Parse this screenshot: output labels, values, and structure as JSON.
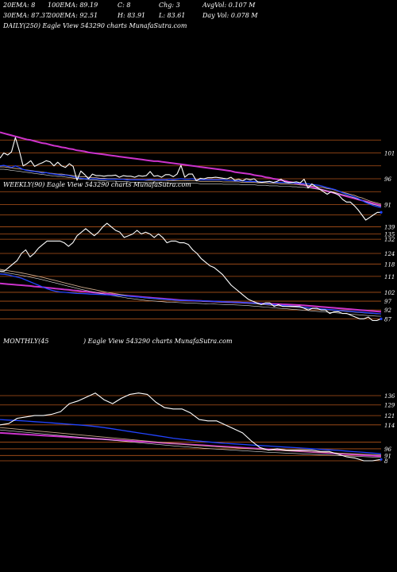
{
  "header": {
    "row1": [
      "20EMA: 8",
      "100EMA: 89.19",
      "C: 8",
      "Chg: 3",
      "AvgVol: 0.107 M"
    ],
    "row2": [
      "30EMA: 87.37",
      "200EMA: 92.51",
      "H: 83.91",
      "L: 83.61",
      "Day Vol: 0.078 M"
    ],
    "daily_label": "DAILY(250) Eagle   View  543290  charts MunafaSutra.com",
    "weekly_label": "WEEKLY(90) Eagle   View  543290  charts MunafaSutra.com",
    "monthly_label": "MONTHLY(45",
    "monthly_label2": ") Eagle   View  543290  charts MunafaSutra.com"
  },
  "colors": {
    "background": "#000000",
    "price": "#ffffff",
    "ema_short": "#2244ff",
    "ema_long": "#cc33cc",
    "ema_mid": "#caa88a",
    "level_line": "#b0531a"
  },
  "chart_data": [
    {
      "type": "line",
      "title": "DAILY(250) Eagle View 543290 charts MunafaSutra.com",
      "ylim": [
        86,
        106
      ],
      "level_ticks": [
        101,
        96,
        91
      ],
      "level_lines": [
        103.5,
        101,
        98.5,
        96,
        93.5,
        91,
        89
      ],
      "x_count": 100,
      "series": [
        {
          "role": "price",
          "values": [
            100,
            101,
            100.6,
            101.2,
            104,
            101.5,
            98.5,
            98.9,
            99.5,
            98.4,
            98.8,
            99.1,
            99.5,
            99.3,
            98.5,
            99.2,
            98.5,
            98.2,
            98.9,
            98.4,
            95.7,
            97.5,
            96.8,
            96,
            96.9,
            96.6,
            96.6,
            96.5,
            96.6,
            96.6,
            96.7,
            96.3,
            96.6,
            96.5,
            96.5,
            96.3,
            96.6,
            96.5,
            96.6,
            97.4,
            96.5,
            96.6,
            96.3,
            96.8,
            96.8,
            96.4,
            96.9,
            98.6,
            96.3,
            96.9,
            96.9,
            95.6,
            96.1,
            96,
            96.2,
            96.2,
            96.3,
            96.2,
            96.1,
            96,
            96.3,
            95.7,
            95.9,
            95.6,
            96,
            95.8,
            96,
            95.4,
            95.3,
            95.4,
            95.5,
            95.3,
            95.5,
            95.9,
            95.4,
            95.3,
            95.3,
            95.4,
            95.2,
            95.9,
            94.2,
            95,
            94.5,
            94,
            93.5,
            93,
            93.5,
            93.2,
            92.8,
            92,
            91.5,
            91.5,
            90.8,
            90,
            89,
            88,
            88.5,
            89,
            89.5,
            89.5
          ]
        },
        {
          "role": "ema_short",
          "values": [
            98.5,
            98.6,
            98.4,
            98.2,
            98.5,
            98.2,
            97.8,
            97.6,
            97.5,
            97.4,
            97.3,
            97.1,
            97.2,
            97,
            96.9,
            96.8,
            96.7,
            96.7,
            96.6,
            96.4,
            96.2,
            96.1,
            96,
            96,
            96,
            96,
            95.9,
            95.9,
            95.9,
            95.9,
            95.9,
            95.9,
            95.9,
            95.8,
            95.8,
            95.8,
            95.8,
            95.8,
            95.8,
            95.9,
            95.8,
            95.8,
            95.8,
            95.8,
            95.9,
            95.8,
            95.9,
            96,
            95.9,
            95.9,
            96,
            95.8,
            95.8,
            95.8,
            95.8,
            95.8,
            95.8,
            95.8,
            95.8,
            95.7,
            95.7,
            95.6,
            95.6,
            95.6,
            95.5,
            95.5,
            95.5,
            95.4,
            95.4,
            95.4,
            95.4,
            95.3,
            95.3,
            95.3,
            95.3,
            95.2,
            95.2,
            95.2,
            95.1,
            95.1,
            95,
            94.9,
            94.8,
            94.7,
            94.5,
            94.3,
            94.1,
            93.9,
            93.6,
            93.3,
            93,
            92.8,
            92.5,
            92.2,
            91.8,
            91.4,
            91.1,
            90.8,
            90.6,
            90.4
          ]
        },
        {
          "role": "ema_mid",
          "values": [
            98.3,
            98.3,
            98.2,
            98.1,
            98,
            97.9,
            97.8,
            97.7,
            97.6,
            97.5,
            97.4,
            97.3,
            97.2,
            97.1,
            97,
            96.9,
            96.9,
            96.8,
            96.7,
            96.6,
            96.5,
            96.4,
            96.4,
            96.3,
            96.2,
            96.2,
            96.1,
            96.1,
            96,
            96,
            96,
            95.9,
            95.9,
            95.9,
            95.8,
            95.8,
            95.8,
            95.8,
            95.7,
            95.7,
            95.7,
            95.7,
            95.7,
            95.7,
            95.6,
            95.6,
            95.6,
            95.6,
            95.6,
            95.6,
            95.6,
            95.6,
            95.5,
            95.5,
            95.5,
            95.5,
            95.5,
            95.5,
            95.4,
            95.4,
            95.4,
            95.4,
            95.4,
            95.3,
            95.3,
            95.3,
            95.3,
            95.2,
            95.2,
            95.2,
            95.1,
            95.1,
            95.1,
            95,
            95,
            95,
            94.9,
            94.9,
            94.8,
            94.8,
            94.7,
            94.6,
            94.5,
            94.4,
            94.3,
            94.1,
            94,
            93.8,
            93.6,
            93.4,
            93.2,
            93,
            92.8,
            92.5,
            92.3,
            92,
            91.7,
            91.5,
            91.3,
            91.1
          ]
        },
        {
          "role": "ema_long",
          "values": [
            105,
            104.8,
            104.6,
            104.4,
            104.2,
            104,
            103.8,
            103.6,
            103.5,
            103.3,
            103.1,
            102.9,
            102.8,
            102.6,
            102.4,
            102.3,
            102.1,
            102,
            101.8,
            101.7,
            101.5,
            101.4,
            101.3,
            101.1,
            101,
            100.9,
            100.8,
            100.7,
            100.6,
            100.5,
            100.4,
            100.3,
            100.2,
            100.1,
            100,
            99.9,
            99.8,
            99.7,
            99.6,
            99.5,
            99.4,
            99.4,
            99.3,
            99.2,
            99.1,
            99,
            98.9,
            98.8,
            98.7,
            98.6,
            98.5,
            98.4,
            98.3,
            98.2,
            98.1,
            98,
            97.9,
            97.8,
            97.7,
            97.6,
            97.5,
            97.3,
            97.2,
            97.1,
            97,
            96.9,
            96.7,
            96.6,
            96.5,
            96.3,
            96.2,
            96,
            95.9,
            95.7,
            95.6,
            95.4,
            95.3,
            95.1,
            94.9,
            94.8,
            94.6,
            94.4,
            94.2,
            94,
            93.8,
            93.6,
            93.4,
            93.2,
            93,
            92.8,
            92.6,
            92.4,
            92.2,
            92,
            91.8,
            91.6,
            91.4,
            91.2,
            91,
            90.8
          ]
        }
      ]
    },
    {
      "type": "line",
      "title": "WEEKLY(90) Eagle View 543290 charts MunafaSutra.com",
      "ylim": [
        84,
        146
      ],
      "level_ticks": [
        139,
        135,
        132,
        124,
        118,
        111,
        102,
        97,
        92,
        87
      ],
      "level_lines": [
        139,
        135,
        132,
        124,
        118,
        111,
        102,
        97,
        92,
        87
      ],
      "x_count": 90,
      "series": [
        {
          "role": "price",
          "values": [
            114,
            114,
            116,
            118,
            120,
            124,
            126,
            122,
            124,
            127,
            129,
            131,
            131,
            131,
            131,
            130,
            128,
            130,
            134,
            136,
            138,
            136,
            134,
            136,
            139,
            141,
            139,
            137,
            136,
            133,
            134,
            135,
            137,
            135,
            136,
            135,
            133,
            135,
            133,
            130,
            131,
            131,
            130,
            130,
            129,
            126,
            124,
            121,
            119,
            117,
            116,
            114,
            112,
            109,
            106,
            104,
            102,
            100,
            98,
            97,
            96,
            95,
            96,
            96,
            94,
            95,
            94,
            94,
            94,
            94,
            94,
            93,
            92,
            93,
            93,
            92,
            92,
            90,
            91,
            91,
            90,
            90,
            89,
            88,
            87,
            87,
            88,
            86,
            86,
            87
          ]
        },
        {
          "role": "ema_short",
          "values": [
            112.4,
            112.2,
            111.8,
            111.2,
            110.6,
            110,
            109,
            108,
            107,
            106,
            105,
            104,
            103.2,
            102.6,
            102.2,
            102,
            101.8,
            101.6,
            101.4,
            101.3,
            101.2,
            101,
            100.9,
            100.8,
            100.7,
            100.6,
            100.4,
            100.3,
            100.2,
            100,
            99.8,
            99.6,
            99.4,
            99.2,
            99,
            98.8,
            98.6,
            98.4,
            98.2,
            98,
            97.8,
            97.6,
            97.4,
            97.4,
            97.4,
            97.3,
            97.2,
            97.2,
            97.1,
            97,
            96.9,
            96.8,
            96.7,
            96.6,
            96.5,
            96.4,
            96.3,
            96.2,
            96.1,
            95.9,
            95.8,
            95.6,
            95.4,
            95.2,
            95,
            94.8,
            94.6,
            94.4,
            94.2,
            94,
            93.7,
            93.5,
            93.2,
            93,
            92.8,
            92.6,
            92.4,
            92.2,
            92,
            91.8,
            91.6,
            91.4,
            91.2,
            91,
            90.8,
            90.6,
            90.4,
            90.2,
            90,
            89.8
          ]
        },
        {
          "role": "ema_mid",
          "values": [
            115,
            114.6,
            114.2,
            113.8,
            113.4,
            113,
            112.5,
            112,
            111.5,
            111,
            110.4,
            109.8,
            109.2,
            108.6,
            108,
            107.4,
            106.8,
            106.2,
            105.6,
            105,
            104.5,
            104,
            103.5,
            103,
            102.5,
            102,
            101.6,
            101.2,
            100.8,
            100.4,
            100,
            99.7,
            99.4,
            99.1,
            98.8,
            98.6,
            98.4,
            98.2,
            98,
            97.8,
            97.7,
            97.6,
            97.5,
            97.4,
            97.3,
            97.2,
            97.1,
            97,
            96.9,
            96.8,
            96.7,
            96.6,
            96.5,
            96.4,
            96.3,
            96.2,
            96.1,
            96,
            95.8,
            95.6,
            95.4,
            95.2,
            95,
            94.8,
            94.6,
            94.4,
            94.2,
            94,
            93.8,
            93.6,
            93.4,
            93.2,
            93,
            92.8,
            92.6,
            92.4,
            92.2,
            92,
            91.8,
            91.6,
            91.4,
            91.2,
            91,
            90.8,
            90.6,
            90.4,
            90.2,
            90,
            89.9,
            89.8
          ]
        },
        {
          "role": "ema_long",
          "values": [
            107,
            106.8,
            106.6,
            106.4,
            106.2,
            106,
            105.8,
            105.6,
            105.3,
            105.1,
            104.9,
            104.6,
            104.4,
            104.1,
            103.9,
            103.6,
            103.4,
            103.1,
            102.9,
            102.6,
            102.4,
            102.1,
            101.9,
            101.6,
            101.4,
            101.1,
            100.9,
            100.6,
            100.4,
            100.2,
            100,
            99.8,
            99.6,
            99.4,
            99.2,
            99,
            98.8,
            98.6,
            98.4,
            98.2,
            98,
            97.8,
            97.6,
            97.5,
            97.4,
            97.3,
            97.2,
            97.1,
            97,
            96.9,
            96.8,
            96.7,
            96.6,
            96.5,
            96.4,
            96.3,
            96.2,
            96.1,
            96,
            95.9,
            95.8,
            95.7,
            95.6,
            95.5,
            95.4,
            95.3,
            95.2,
            95.1,
            95,
            94.9,
            94.8,
            94.6,
            94.4,
            94.2,
            94,
            93.8,
            93.6,
            93.4,
            93.2,
            93,
            92.8,
            92.6,
            92.4,
            92.2,
            92,
            91.8,
            91.6,
            91.4,
            91.2,
            91
          ]
        }
      ]
    },
    {
      "type": "line",
      "title": "MONTHLY(45) Eagle View 543290 charts MunafaSutra.com",
      "ylim": [
        84,
        142
      ],
      "level_ticks": [
        136,
        129,
        121,
        114,
        96,
        91,
        8
      ],
      "level_lines": [
        136,
        129,
        121,
        114,
        101,
        96,
        91,
        87
      ],
      "x_count": 45,
      "series": [
        {
          "role": "price",
          "values": [
            114,
            115,
            119,
            120,
            121,
            121,
            122,
            124,
            130,
            132,
            135,
            138,
            133,
            130,
            134,
            137,
            138,
            137,
            131,
            127,
            126,
            126,
            123,
            118,
            117,
            117,
            114,
            111,
            108,
            102,
            97,
            95,
            96,
            95,
            95,
            95,
            95,
            94,
            94,
            92,
            90,
            89,
            87,
            87,
            88
          ]
        },
        {
          "role": "ema_short",
          "values": [
            118,
            117.6,
            117.3,
            116.9,
            116.4,
            116,
            115.5,
            115,
            114.5,
            114,
            113.5,
            112.8,
            112,
            111,
            110,
            109,
            108,
            107,
            106,
            105,
            104,
            103.2,
            102.5,
            101.8,
            101.2,
            100.6,
            100.1,
            99.7,
            99.3,
            98.9,
            98.5,
            98.1,
            97.7,
            97.3,
            96.9,
            96.5,
            96.1,
            95.6,
            95.2,
            94.8,
            94.3,
            93.8,
            93.3,
            92.8,
            92.3
          ]
        },
        {
          "role": "ema_mid",
          "values": [
            112,
            111.4,
            110.8,
            110.2,
            109.6,
            109,
            108.4,
            107.8,
            107.2,
            106.6,
            106,
            105.4,
            104.8,
            104.2,
            103.6,
            103,
            102.4,
            101.8,
            101.2,
            100.6,
            100,
            99.5,
            99,
            98.5,
            98,
            97.6,
            97.2,
            96.8,
            96.4,
            96,
            95.6,
            95.2,
            94.9,
            94.6,
            94.3,
            94,
            93.7,
            93.4,
            93.1,
            92.8,
            92.5,
            92.2,
            91.9,
            91.6,
            91.4
          ]
        },
        {
          "role": "ema_long",
          "values": [
            108,
            107.6,
            107.2,
            106.8,
            106.4,
            106,
            105.6,
            105.2,
            104.8,
            104.4,
            104,
            103.6,
            103.2,
            102.8,
            102.4,
            102,
            101.6,
            101.2,
            100.8,
            100.4,
            100,
            99.6,
            99.2,
            98.8,
            98.4,
            98,
            97.6,
            97.2,
            96.8,
            96.4,
            96,
            95.6,
            95.2,
            94.8,
            94.4,
            94,
            93.6,
            93.2,
            92.8,
            92.4,
            92,
            91.6,
            91.2,
            90.8,
            90.4
          ]
        }
      ]
    }
  ]
}
